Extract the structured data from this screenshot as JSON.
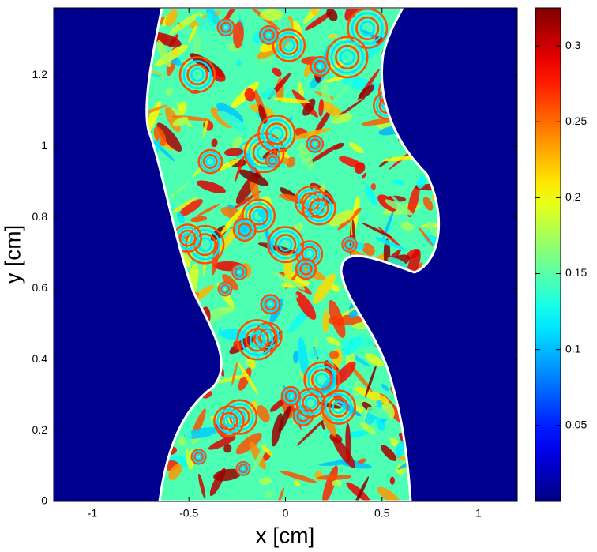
{
  "chart_data": {
    "type": "heatmap",
    "xlabel": "x [cm]",
    "ylabel": "y [cm]",
    "xlim": [
      -1.2,
      1.2
    ],
    "xticks": [
      -1,
      -0.5,
      0,
      0.5,
      1
    ],
    "ylim": [
      0,
      1.39
    ],
    "yticks": [
      0,
      0.2,
      0.4,
      0.6,
      0.8,
      1,
      1.2
    ],
    "colormap": "jet",
    "clim": [
      0,
      0.325
    ],
    "cticks": [
      0.05,
      0.1,
      0.15,
      0.2,
      0.25,
      0.3
    ],
    "background": "#00008f",
    "contour_color": "#ffffff"
  }
}
